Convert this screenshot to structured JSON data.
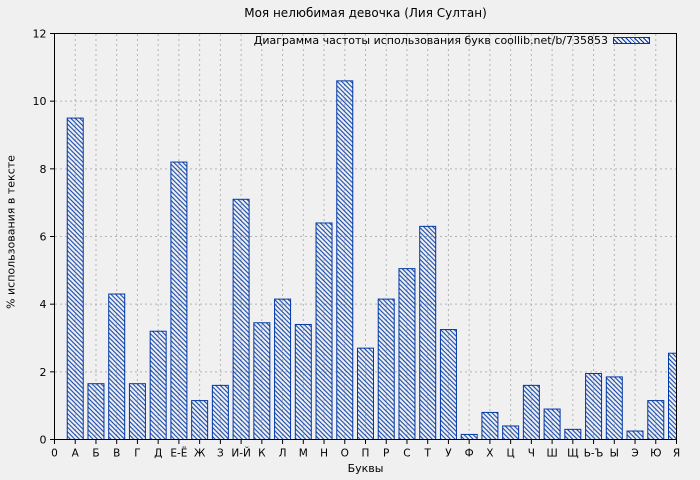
{
  "page": {
    "background_color": "#f0f0f0"
  },
  "chart_data": {
    "type": "bar",
    "title": "Моя нелюбимая девочка (Лия Султан)",
    "legend": "Диаграмма частоты использования букв coollib.net/b/735853",
    "legend_position": "top-right-inside",
    "xlabel": "Буквы",
    "ylabel": "% использования в тексте",
    "ylim": [
      0,
      12
    ],
    "yticks": [
      0,
      2,
      4,
      6,
      8,
      10,
      12
    ],
    "grid": true,
    "bar_style": "diagonal-hatch-outline",
    "bar_color": "#0038a6",
    "grid_color": "#b3b3b3",
    "border_color": "#000000",
    "categories": [
      "0",
      "А",
      "Б",
      "В",
      "Г",
      "Д",
      "Е-Ё",
      "Ж",
      "З",
      "И-Й",
      "К",
      "Л",
      "М",
      "Н",
      "О",
      "П",
      "Р",
      "С",
      "Т",
      "У",
      "Ф",
      "Х",
      "Ц",
      "Ч",
      "Ш",
      "Щ",
      "Ь-Ъ",
      "Ы",
      "Э",
      "Ю",
      "Я"
    ],
    "values": [
      0,
      9.5,
      1.65,
      4.3,
      1.65,
      3.2,
      8.2,
      1.15,
      1.6,
      7.1,
      3.45,
      4.15,
      3.4,
      6.4,
      10.6,
      2.7,
      4.15,
      5.05,
      6.3,
      3.25,
      0.15,
      0.8,
      0.4,
      1.6,
      0.9,
      0.3,
      1.95,
      1.85,
      0.25,
      1.15,
      2.55
    ]
  }
}
